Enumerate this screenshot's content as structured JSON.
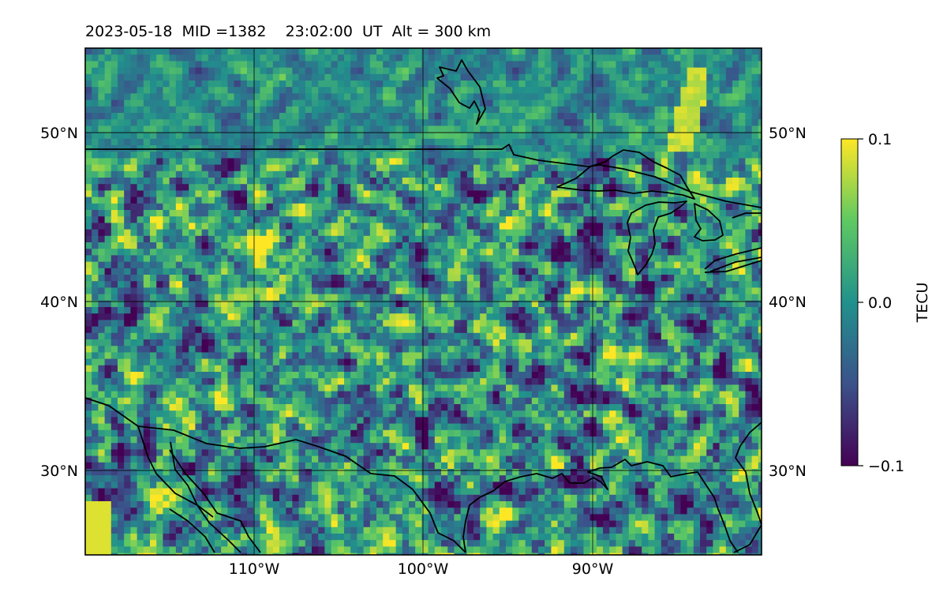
{
  "title": "2023-05-18  MID =1382    23:02:00  UT  Alt = 300 km",
  "map": {
    "lon_range": [
      -120,
      -80
    ],
    "lat_range": [
      25,
      55
    ],
    "parallels": [
      {
        "lat": 50,
        "label": "50°N"
      },
      {
        "lat": 40,
        "label": "40°N"
      },
      {
        "lat": 30,
        "label": "30°N"
      }
    ],
    "meridians": [
      {
        "lon": -110,
        "label": "110°W"
      },
      {
        "lon": -100,
        "label": "100°W"
      },
      {
        "lon": -90,
        "label": "90°W"
      }
    ],
    "field": "TEC perturbation"
  },
  "colorbar": {
    "label": "TECU",
    "ticks": [
      {
        "value": 0.1,
        "label": "0.1"
      },
      {
        "value": 0.0,
        "label": "0.0"
      },
      {
        "value": -0.1,
        "label": "−0.1"
      }
    ],
    "colormap": "viridis",
    "colors": [
      "#440154",
      "#3b528b",
      "#21918c",
      "#5ec962",
      "#fde725"
    ]
  }
}
